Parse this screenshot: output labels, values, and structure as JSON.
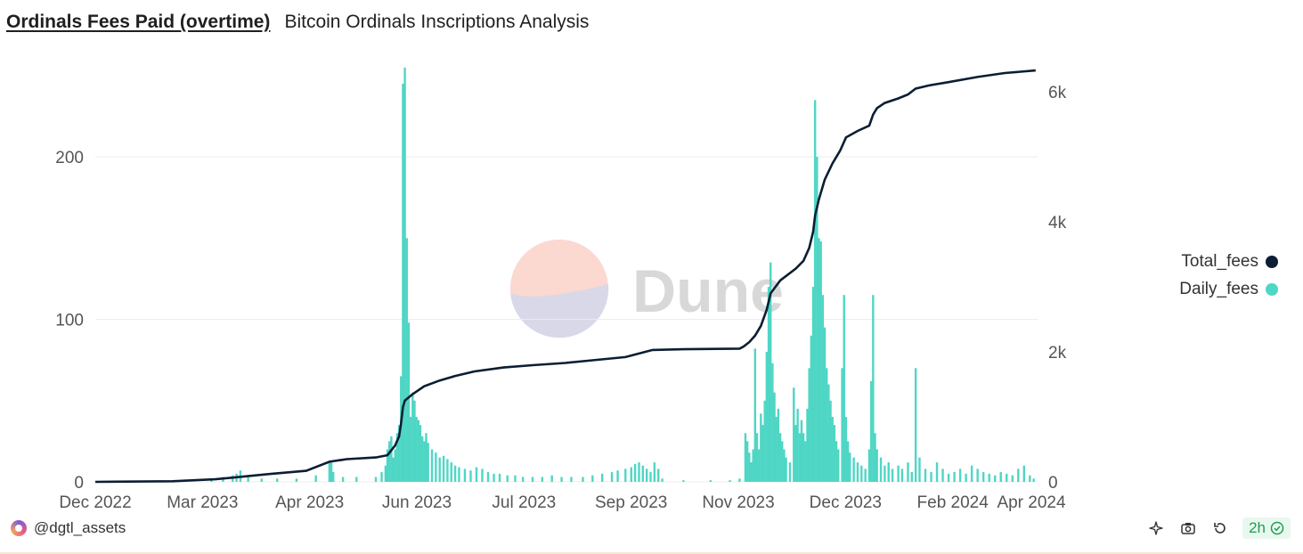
{
  "header": {
    "title": "Ordinals Fees Paid (overtime)",
    "subtitle": "Bitcoin Ordinals Inscriptions Analysis"
  },
  "watermark": "Dune",
  "footer": {
    "author": "@dgtl_assets",
    "refresh_label": "2h"
  },
  "colors": {
    "daily": "#4fd6c4",
    "total": "#0b1e33",
    "grid": "#ececec",
    "axis_text": "#555555"
  },
  "icons": [
    "sparkle-icon",
    "camera-icon",
    "refresh-icon",
    "check-circle-icon",
    "avatar-icon"
  ],
  "chart_data": {
    "type": "bar+line",
    "x_start": "2022-12-01",
    "x_end": "2024-04-01",
    "x_ticks": [
      "Dec 2022",
      "Mar 2023",
      "Apr 2023",
      "Jun 2023",
      "Jul 2023",
      "Sep 2023",
      "Nov 2023",
      "Dec 2023",
      "Feb 2024",
      "Apr 2024"
    ],
    "y_left": {
      "ticks": [
        "0",
        "100",
        "200"
      ],
      "min": 0,
      "max": 256
    },
    "y_right": {
      "ticks": [
        "0",
        "2k",
        "4k",
        "6k"
      ],
      "min": 0,
      "max": 6400
    },
    "grid": true,
    "legend_position": "right",
    "legend": [
      "Total_fees",
      "Daily_fees"
    ],
    "series": [
      {
        "name": "Daily_fees",
        "type": "bar",
        "axis": "left",
        "points": [
          [
            "2023-01-30",
            1
          ],
          [
            "2023-02-05",
            3
          ],
          [
            "2023-02-10",
            4
          ],
          [
            "2023-02-12",
            5
          ],
          [
            "2023-02-14",
            7
          ],
          [
            "2023-02-18",
            3
          ],
          [
            "2023-02-25",
            2
          ],
          [
            "2023-03-05",
            2
          ],
          [
            "2023-03-15",
            2
          ],
          [
            "2023-03-25",
            4
          ],
          [
            "2023-04-01",
            12
          ],
          [
            "2023-04-02",
            13
          ],
          [
            "2023-04-03",
            6
          ],
          [
            "2023-04-08",
            3
          ],
          [
            "2023-04-15",
            3
          ],
          [
            "2023-04-25",
            3
          ],
          [
            "2023-04-28",
            6
          ],
          [
            "2023-04-30",
            10
          ],
          [
            "2023-05-01",
            20
          ],
          [
            "2023-05-02",
            25
          ],
          [
            "2023-05-03",
            28
          ],
          [
            "2023-05-04",
            15
          ],
          [
            "2023-05-05",
            20
          ],
          [
            "2023-05-06",
            30
          ],
          [
            "2023-05-07",
            35
          ],
          [
            "2023-05-08",
            65
          ],
          [
            "2023-05-09",
            245
          ],
          [
            "2023-05-10",
            255
          ],
          [
            "2023-05-11",
            150
          ],
          [
            "2023-05-12",
            98
          ],
          [
            "2023-05-13",
            40
          ],
          [
            "2023-05-14",
            55
          ],
          [
            "2023-05-15",
            50
          ],
          [
            "2023-05-16",
            40
          ],
          [
            "2023-05-17",
            38
          ],
          [
            "2023-05-18",
            35
          ],
          [
            "2023-05-19",
            28
          ],
          [
            "2023-05-20",
            25
          ],
          [
            "2023-05-21",
            30
          ],
          [
            "2023-05-22",
            24
          ],
          [
            "2023-05-24",
            20
          ],
          [
            "2023-05-26",
            18
          ],
          [
            "2023-05-28",
            15
          ],
          [
            "2023-05-30",
            16
          ],
          [
            "2023-06-01",
            14
          ],
          [
            "2023-06-03",
            12
          ],
          [
            "2023-06-05",
            10
          ],
          [
            "2023-06-07",
            9
          ],
          [
            "2023-06-10",
            8
          ],
          [
            "2023-06-13",
            7
          ],
          [
            "2023-06-16",
            9
          ],
          [
            "2023-06-19",
            8
          ],
          [
            "2023-06-22",
            6
          ],
          [
            "2023-06-25",
            5
          ],
          [
            "2023-06-28",
            5
          ],
          [
            "2023-07-02",
            4
          ],
          [
            "2023-07-06",
            4
          ],
          [
            "2023-07-10",
            3
          ],
          [
            "2023-07-15",
            3
          ],
          [
            "2023-07-20",
            3
          ],
          [
            "2023-07-25",
            4
          ],
          [
            "2023-07-30",
            3
          ],
          [
            "2023-08-04",
            3
          ],
          [
            "2023-08-10",
            3
          ],
          [
            "2023-08-15",
            4
          ],
          [
            "2023-08-20",
            5
          ],
          [
            "2023-08-25",
            6
          ],
          [
            "2023-08-28",
            7
          ],
          [
            "2023-09-01",
            8
          ],
          [
            "2023-09-04",
            9
          ],
          [
            "2023-09-06",
            11
          ],
          [
            "2023-09-08",
            12
          ],
          [
            "2023-09-10",
            10
          ],
          [
            "2023-09-12",
            8
          ],
          [
            "2023-09-14",
            6
          ],
          [
            "2023-09-16",
            12
          ],
          [
            "2023-09-18",
            8
          ],
          [
            "2023-09-20",
            2
          ],
          [
            "2023-10-01",
            1
          ],
          [
            "2023-10-15",
            1
          ],
          [
            "2023-10-25",
            1
          ],
          [
            "2023-10-30",
            2
          ],
          [
            "2023-11-02",
            30
          ],
          [
            "2023-11-03",
            25
          ],
          [
            "2023-11-04",
            18
          ],
          [
            "2023-11-05",
            12
          ],
          [
            "2023-11-06",
            20
          ],
          [
            "2023-11-07",
            82
          ],
          [
            "2023-11-08",
            30
          ],
          [
            "2023-11-09",
            20
          ],
          [
            "2023-11-10",
            42
          ],
          [
            "2023-11-11",
            35
          ],
          [
            "2023-11-12",
            50
          ],
          [
            "2023-11-13",
            80
          ],
          [
            "2023-11-14",
            120
          ],
          [
            "2023-11-15",
            135
          ],
          [
            "2023-11-16",
            73
          ],
          [
            "2023-11-17",
            55
          ],
          [
            "2023-11-18",
            40
          ],
          [
            "2023-11-19",
            45
          ],
          [
            "2023-11-20",
            30
          ],
          [
            "2023-11-21",
            25
          ],
          [
            "2023-11-22",
            20
          ],
          [
            "2023-11-23",
            15
          ],
          [
            "2023-11-25",
            12
          ],
          [
            "2023-11-27",
            58
          ],
          [
            "2023-11-28",
            35
          ],
          [
            "2023-11-29",
            45
          ],
          [
            "2023-11-30",
            30
          ],
          [
            "2023-12-01",
            38
          ],
          [
            "2023-12-02",
            30
          ],
          [
            "2023-12-03",
            25
          ],
          [
            "2023-12-04",
            45
          ],
          [
            "2023-12-05",
            70
          ],
          [
            "2023-12-06",
            90
          ],
          [
            "2023-12-07",
            120
          ],
          [
            "2023-12-08",
            235
          ],
          [
            "2023-12-09",
            200
          ],
          [
            "2023-12-10",
            150
          ],
          [
            "2023-12-11",
            148
          ],
          [
            "2023-12-12",
            115
          ],
          [
            "2023-12-13",
            95
          ],
          [
            "2023-12-14",
            70
          ],
          [
            "2023-12-15",
            60
          ],
          [
            "2023-12-16",
            50
          ],
          [
            "2023-12-17",
            40
          ],
          [
            "2023-12-18",
            35
          ],
          [
            "2023-12-19",
            25
          ],
          [
            "2023-12-20",
            20
          ],
          [
            "2023-12-22",
            70
          ],
          [
            "2023-12-23",
            115
          ],
          [
            "2023-12-24",
            40
          ],
          [
            "2023-12-25",
            25
          ],
          [
            "2023-12-26",
            18
          ],
          [
            "2023-12-28",
            15
          ],
          [
            "2023-12-30",
            12
          ],
          [
            "2024-01-01",
            10
          ],
          [
            "2024-01-03",
            8
          ],
          [
            "2024-01-05",
            20
          ],
          [
            "2024-01-06",
            62
          ],
          [
            "2024-01-07",
            115
          ],
          [
            "2024-01-08",
            30
          ],
          [
            "2024-01-09",
            20
          ],
          [
            "2024-01-11",
            15
          ],
          [
            "2024-01-13",
            10
          ],
          [
            "2024-01-15",
            12
          ],
          [
            "2024-01-17",
            8
          ],
          [
            "2024-01-20",
            10
          ],
          [
            "2024-01-22",
            8
          ],
          [
            "2024-01-25",
            12
          ],
          [
            "2024-01-27",
            6
          ],
          [
            "2024-01-29",
            70
          ],
          [
            "2024-01-31",
            15
          ],
          [
            "2024-02-03",
            8
          ],
          [
            "2024-02-06",
            6
          ],
          [
            "2024-02-09",
            12
          ],
          [
            "2024-02-12",
            8
          ],
          [
            "2024-02-15",
            5
          ],
          [
            "2024-02-18",
            6
          ],
          [
            "2024-02-21",
            8
          ],
          [
            "2024-02-24",
            5
          ],
          [
            "2024-02-27",
            10
          ],
          [
            "2024-03-01",
            8
          ],
          [
            "2024-03-04",
            6
          ],
          [
            "2024-03-07",
            5
          ],
          [
            "2024-03-10",
            4
          ],
          [
            "2024-03-13",
            6
          ],
          [
            "2024-03-16",
            5
          ],
          [
            "2024-03-19",
            4
          ],
          [
            "2024-03-22",
            8
          ],
          [
            "2024-03-25",
            10
          ],
          [
            "2024-03-28",
            4
          ],
          [
            "2024-03-30",
            2
          ]
        ]
      },
      {
        "name": "Total_fees",
        "type": "line",
        "axis": "right",
        "points": [
          [
            "2022-12-01",
            0
          ],
          [
            "2023-01-10",
            10
          ],
          [
            "2023-02-01",
            40
          ],
          [
            "2023-03-01",
            120
          ],
          [
            "2023-03-20",
            170
          ],
          [
            "2023-04-01",
            310
          ],
          [
            "2023-04-10",
            350
          ],
          [
            "2023-04-25",
            375
          ],
          [
            "2023-05-01",
            410
          ],
          [
            "2023-05-05",
            560
          ],
          [
            "2023-05-07",
            700
          ],
          [
            "2023-05-08",
            900
          ],
          [
            "2023-05-09",
            1150
          ],
          [
            "2023-05-10",
            1250
          ],
          [
            "2023-05-14",
            1350
          ],
          [
            "2023-05-20",
            1470
          ],
          [
            "2023-05-28",
            1560
          ],
          [
            "2023-06-05",
            1630
          ],
          [
            "2023-06-15",
            1700
          ],
          [
            "2023-06-30",
            1760
          ],
          [
            "2023-07-15",
            1795
          ],
          [
            "2023-08-01",
            1830
          ],
          [
            "2023-08-15",
            1870
          ],
          [
            "2023-09-01",
            1920
          ],
          [
            "2023-09-10",
            1990
          ],
          [
            "2023-09-15",
            2030
          ],
          [
            "2023-10-01",
            2040
          ],
          [
            "2023-10-30",
            2050
          ],
          [
            "2023-11-01",
            2080
          ],
          [
            "2023-11-04",
            2150
          ],
          [
            "2023-11-07",
            2250
          ],
          [
            "2023-11-10",
            2400
          ],
          [
            "2023-11-13",
            2650
          ],
          [
            "2023-11-15",
            2900
          ],
          [
            "2023-11-20",
            3100
          ],
          [
            "2023-11-28",
            3280
          ],
          [
            "2023-12-02",
            3400
          ],
          [
            "2023-12-05",
            3600
          ],
          [
            "2023-12-07",
            3850
          ],
          [
            "2023-12-08",
            4100
          ],
          [
            "2023-12-10",
            4350
          ],
          [
            "2023-12-13",
            4650
          ],
          [
            "2023-12-17",
            4900
          ],
          [
            "2023-12-21",
            5100
          ],
          [
            "2023-12-24",
            5300
          ],
          [
            "2023-12-30",
            5400
          ],
          [
            "2024-01-05",
            5480
          ],
          [
            "2024-01-07",
            5650
          ],
          [
            "2024-01-09",
            5750
          ],
          [
            "2024-01-13",
            5830
          ],
          [
            "2024-01-20",
            5900
          ],
          [
            "2024-01-25",
            5960
          ],
          [
            "2024-01-29",
            6050
          ],
          [
            "2024-02-05",
            6100
          ],
          [
            "2024-02-15",
            6150
          ],
          [
            "2024-03-01",
            6230
          ],
          [
            "2024-03-15",
            6290
          ],
          [
            "2024-03-31",
            6330
          ]
        ]
      }
    ]
  }
}
